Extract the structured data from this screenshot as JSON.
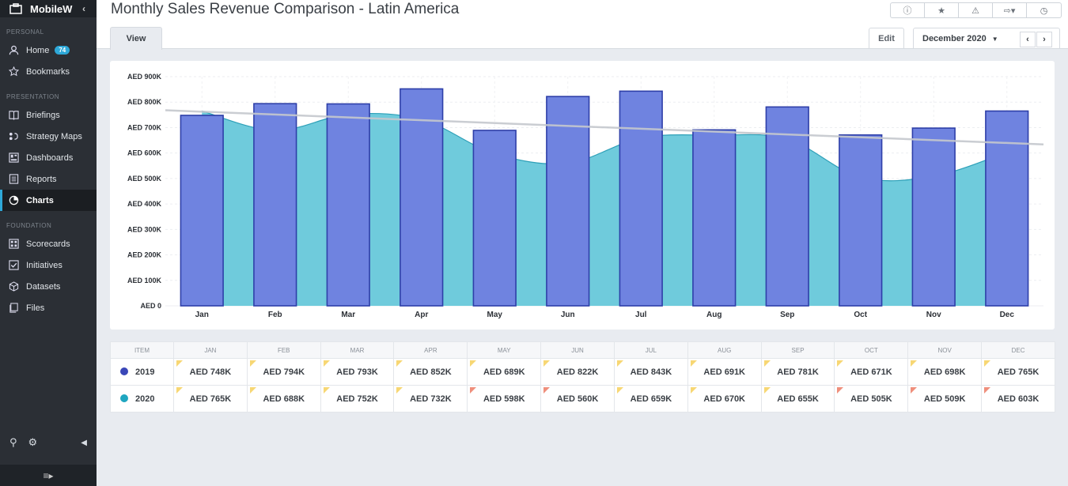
{
  "sidebar": {
    "brand": "MobileW",
    "sections": {
      "personal": "PERSONAL",
      "presentation": "PRESENTATION",
      "foundation": "FOUNDATION"
    },
    "items": [
      {
        "label": "Home",
        "badge": "74"
      },
      {
        "label": "Bookmarks"
      },
      {
        "label": "Briefings"
      },
      {
        "label": "Strategy Maps"
      },
      {
        "label": "Dashboards"
      },
      {
        "label": "Reports"
      },
      {
        "label": "Charts",
        "active": true
      },
      {
        "label": "Scorecards"
      },
      {
        "label": "Initiatives"
      },
      {
        "label": "Datasets"
      },
      {
        "label": "Files"
      }
    ]
  },
  "header": {
    "title": "Monthly Sales Revenue Comparison - Latin America",
    "tab_view": "View",
    "edit": "Edit",
    "period": "December 2020",
    "toolbar_icons": [
      "info-icon",
      "star-icon",
      "warning-icon",
      "export-icon",
      "clock-icon"
    ]
  },
  "colors": {
    "bar": "#6f83e0",
    "bar_stroke": "#2e3fa8",
    "area": "#6fcbdc",
    "area_line": "#2ea0b8",
    "trend": "#c5c8ce",
    "series_2019": "#3a47b8",
    "series_2020": "#1fa6c0"
  },
  "chart_data": {
    "type": "bar",
    "categories": [
      "Jan",
      "Feb",
      "Mar",
      "Apr",
      "May",
      "Jun",
      "Jul",
      "Aug",
      "Sep",
      "Oct",
      "Nov",
      "Dec"
    ],
    "series": [
      {
        "name": "2019",
        "type": "bar",
        "values": [
          748,
          794,
          793,
          852,
          689,
          822,
          843,
          691,
          781,
          671,
          698,
          765
        ]
      },
      {
        "name": "2020",
        "type": "area",
        "values": [
          765,
          688,
          752,
          732,
          598,
          560,
          659,
          670,
          655,
          505,
          509,
          603
        ]
      }
    ],
    "trendline": {
      "start": 768,
      "end": 634
    },
    "units": "AED K",
    "yticks": [
      "AED 0",
      "AED 100K",
      "AED 200K",
      "AED 300K",
      "AED 400K",
      "AED 500K",
      "AED 600K",
      "AED 700K",
      "AED 800K",
      "AED 900K"
    ],
    "ylim": [
      0,
      900
    ],
    "grid": true
  },
  "table": {
    "headers": [
      "ITEM",
      "JAN",
      "FEB",
      "MAR",
      "APR",
      "MAY",
      "JUN",
      "JUL",
      "AUG",
      "SEP",
      "OCT",
      "NOV",
      "DEC"
    ],
    "rows": [
      {
        "label": "2019",
        "dot_color": "#3a47b8",
        "cells": [
          "AED 748K",
          "AED 794K",
          "AED 793K",
          "AED 852K",
          "AED 689K",
          "AED 822K",
          "AED 843K",
          "AED 691K",
          "AED 781K",
          "AED 671K",
          "AED 698K",
          "AED 765K"
        ],
        "flags": [
          "yellow",
          "yellow",
          "yellow",
          "yellow",
          "yellow",
          "yellow",
          "yellow",
          "yellow",
          "yellow",
          "yellow",
          "yellow",
          "yellow"
        ]
      },
      {
        "label": "2020",
        "dot_color": "#1fa6c0",
        "cells": [
          "AED 765K",
          "AED 688K",
          "AED 752K",
          "AED 732K",
          "AED 598K",
          "AED 560K",
          "AED 659K",
          "AED 670K",
          "AED 655K",
          "AED 505K",
          "AED 509K",
          "AED 603K"
        ],
        "flags": [
          "yellow",
          "yellow",
          "yellow",
          "yellow",
          "red",
          "red",
          "yellow",
          "yellow",
          "yellow",
          "red",
          "red",
          "red"
        ]
      }
    ]
  }
}
